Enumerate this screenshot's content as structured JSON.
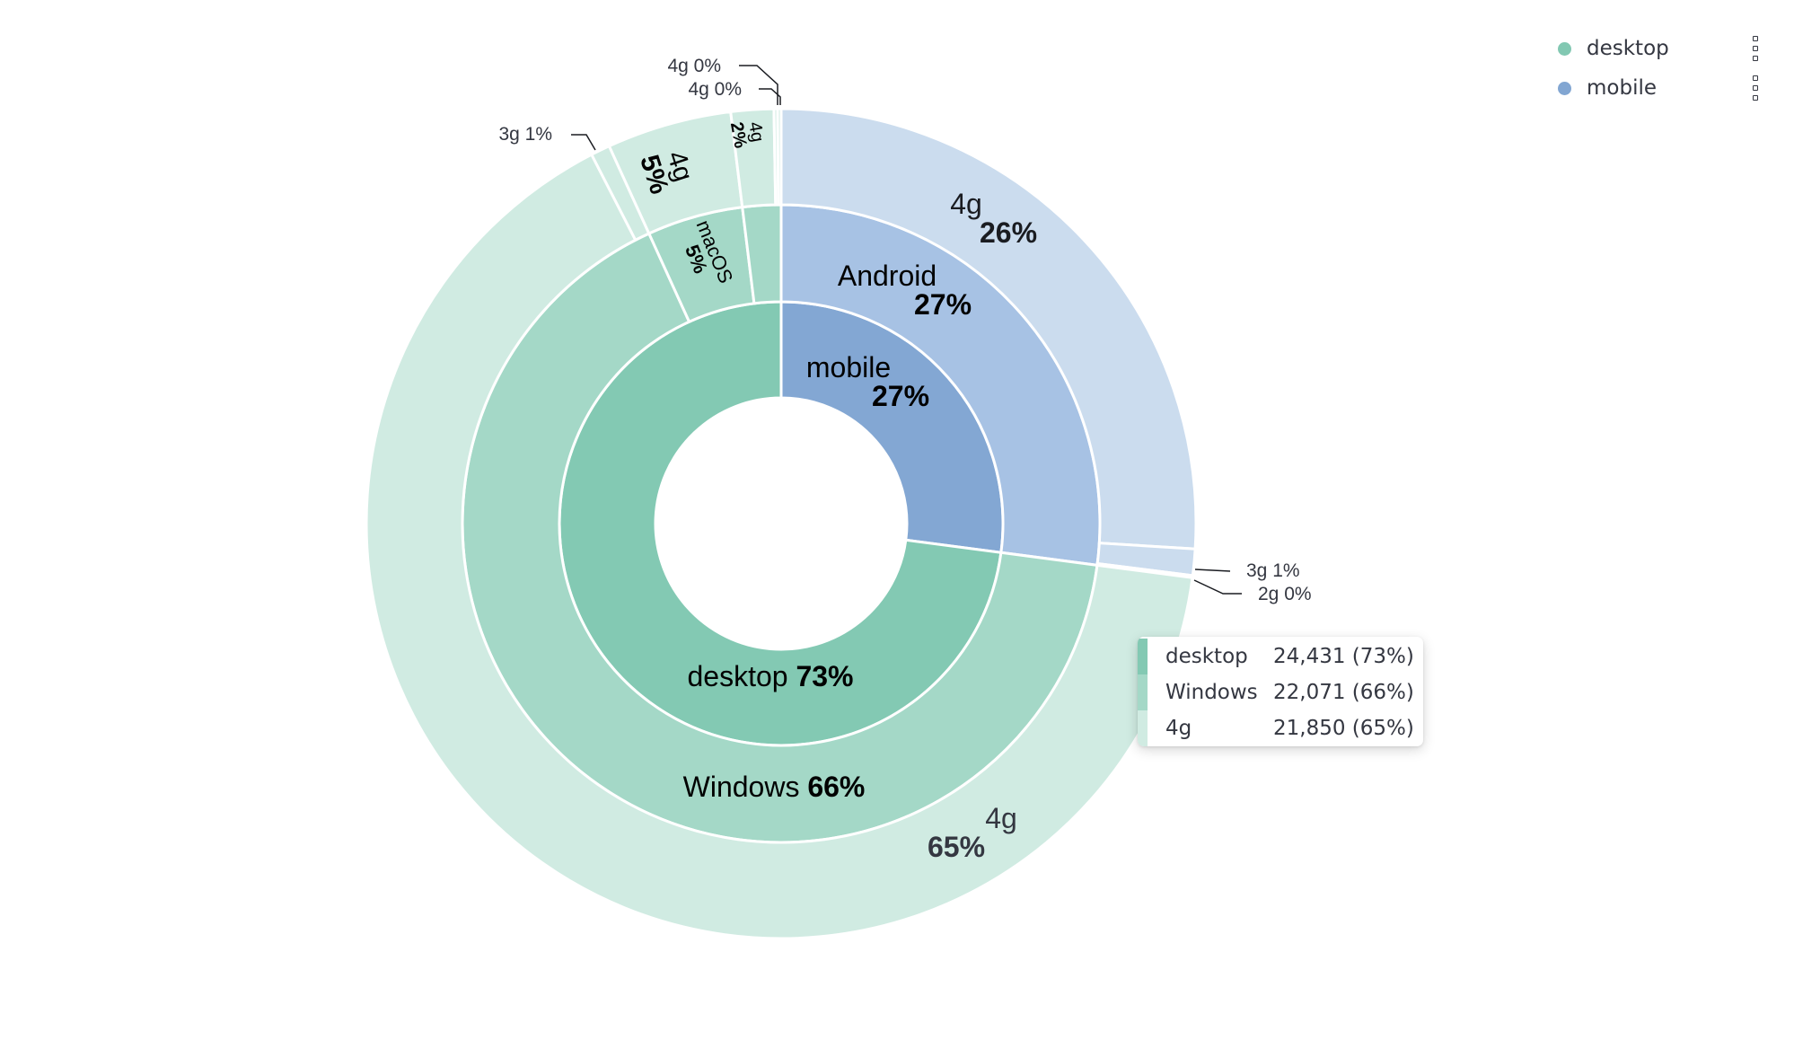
{
  "chart_data": {
    "type": "sunburst",
    "levels": [
      "type",
      "os",
      "network"
    ],
    "nodes": [
      {
        "name": "mobile",
        "percent": 27,
        "children": [
          {
            "name": "Android",
            "percent": 27,
            "children": [
              {
                "name": "4g",
                "percent": 26
              },
              {
                "name": "3g",
                "percent": 1
              },
              {
                "name": "2g",
                "percent": 0
              }
            ]
          }
        ]
      },
      {
        "name": "desktop",
        "percent": 73,
        "children": [
          {
            "name": "Windows",
            "percent": 66,
            "children": [
              {
                "name": "4g",
                "percent": 65
              },
              {
                "name": "3g",
                "percent": 1
              }
            ]
          },
          {
            "name": "macOS",
            "percent": 5,
            "children": [
              {
                "name": "4g",
                "percent": 5
              }
            ]
          },
          {
            "name": "",
            "percent": 2,
            "children": [
              {
                "name": "4g",
                "percent": 2
              },
              {
                "name": "4g",
                "percent": 0
              },
              {
                "name": "4g",
                "percent": 0
              }
            ]
          }
        ]
      }
    ],
    "legend": [
      {
        "label": "desktop",
        "color": "#82c8b2"
      },
      {
        "label": "mobile",
        "color": "#82a6d2"
      }
    ],
    "legend_position": "top-right",
    "tooltip": [
      {
        "label": "desktop",
        "value": "24,431 (73%)"
      },
      {
        "label": "Windows",
        "value": "22,071 (66%)"
      },
      {
        "label": "4g",
        "value": "21,850 (65%)"
      }
    ],
    "colors": {
      "desktop_l1": "#83c9b3",
      "desktop_l2": "#a4d8c7",
      "desktop_l3": "#d0ebe2",
      "mobile_l1": "#83a7d3",
      "mobile_l2": "#a7c2e4",
      "mobile_l3": "#cbdcee"
    }
  }
}
